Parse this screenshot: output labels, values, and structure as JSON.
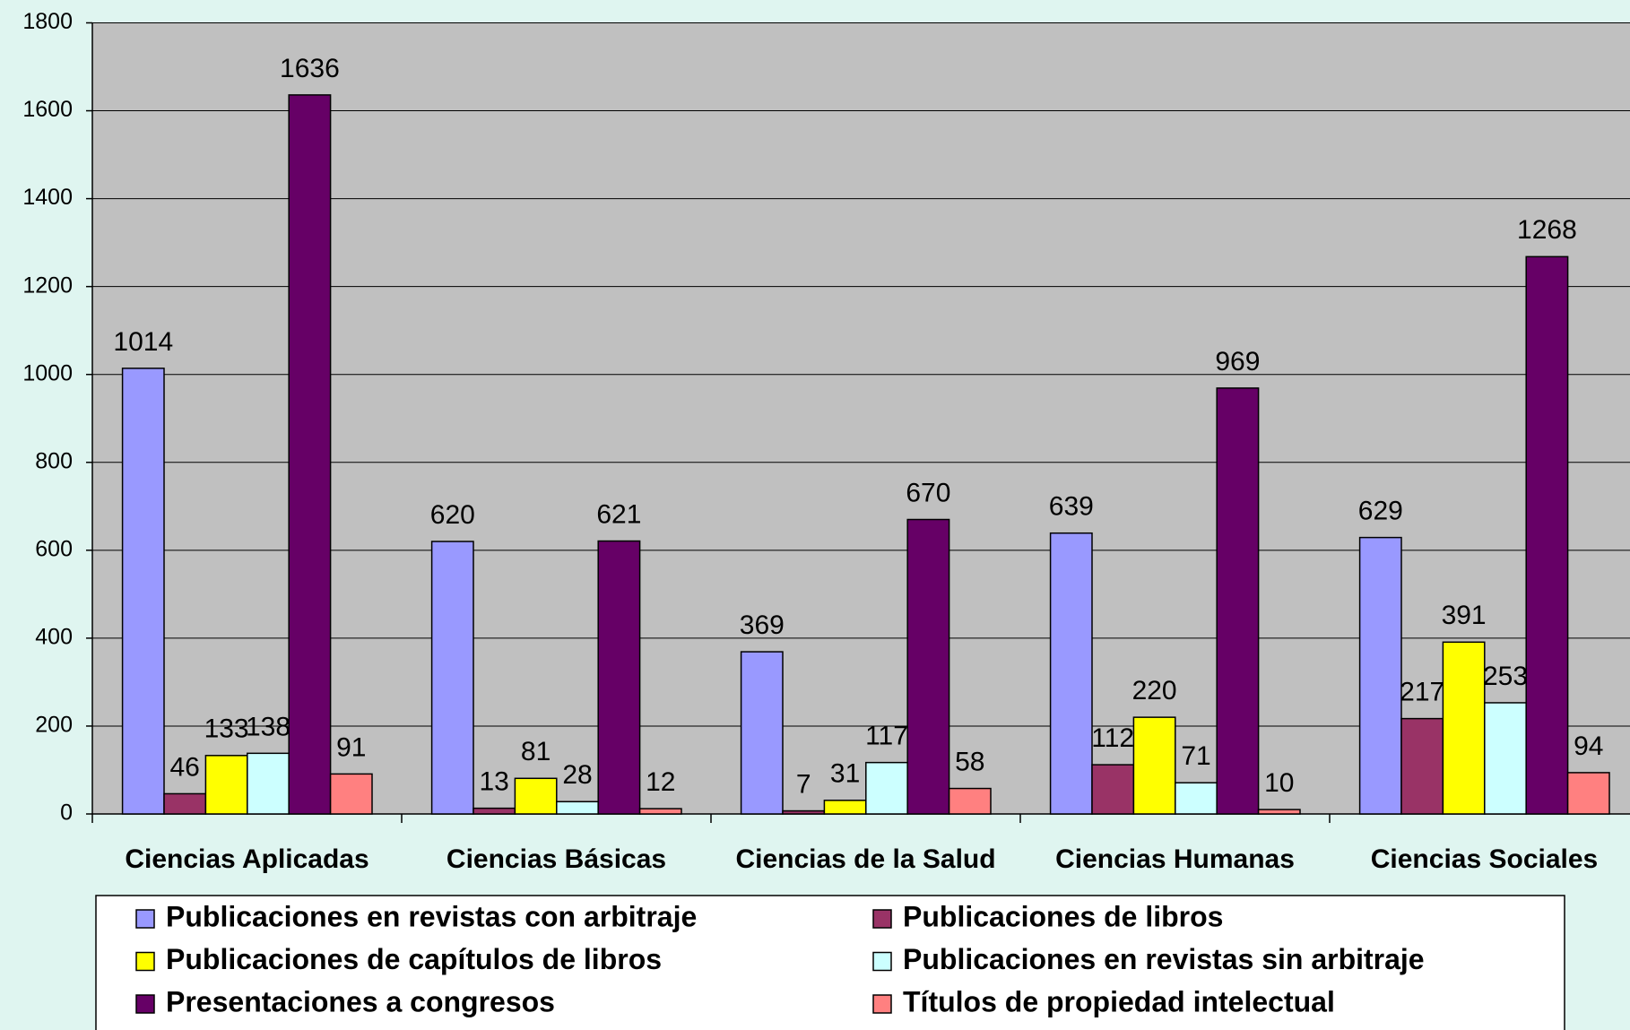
{
  "chart_data": {
    "type": "bar",
    "categories": [
      "Ciencias Aplicadas",
      "Ciencias Básicas",
      "Ciencias de la Salud",
      "Ciencias Humanas",
      "Ciencias Sociales"
    ],
    "series": [
      {
        "name": "Publicaciones en revistas con arbitraje",
        "color": "#9999ff",
        "values": [
          1014,
          620,
          369,
          639,
          629
        ]
      },
      {
        "name": "Publicaciones de libros",
        "color": "#993366",
        "values": [
          46,
          13,
          7,
          112,
          217
        ]
      },
      {
        "name": "Publicaciones de capítulos de libros",
        "color": "#ffff00",
        "values": [
          133,
          81,
          31,
          220,
          391
        ]
      },
      {
        "name": "Publicaciones en revistas sin arbitraje",
        "color": "#ccffff",
        "values": [
          138,
          28,
          117,
          71,
          253
        ]
      },
      {
        "name": "Presentaciones a congresos",
        "color": "#660066",
        "values": [
          1636,
          621,
          670,
          969,
          1268
        ]
      },
      {
        "name": "Títulos de propiedad intelectual",
        "color": "#ff8080",
        "values": [
          91,
          12,
          58,
          10,
          94
        ]
      }
    ],
    "ylim": [
      0,
      1800
    ],
    "yticks": [
      0,
      200,
      400,
      600,
      800,
      1000,
      1200,
      1400,
      1600,
      1800
    ],
    "grid": true
  }
}
